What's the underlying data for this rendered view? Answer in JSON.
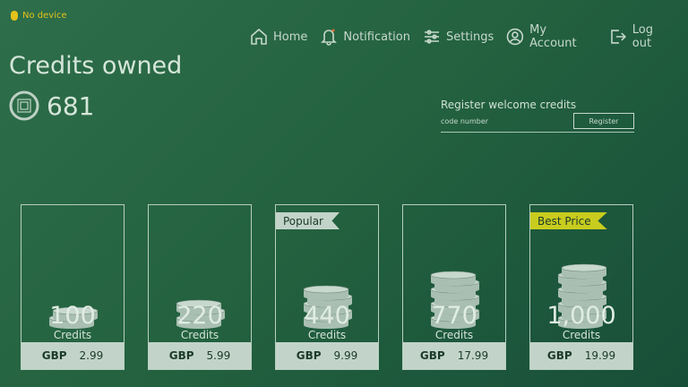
{
  "status": {
    "device": "No device",
    "icon": "bluetooth-icon",
    "color": "#e3c21a"
  },
  "nav": [
    {
      "label": "Home",
      "icon": "home"
    },
    {
      "label": "Notification",
      "icon": "bell"
    },
    {
      "label": "Settings",
      "icon": "sliders"
    },
    {
      "label": "My Account",
      "icon": "user"
    },
    {
      "label": "Log out",
      "icon": "logout"
    }
  ],
  "credits": {
    "title": "Credits owned",
    "balance": "681"
  },
  "register": {
    "label": "Register welcome credits",
    "placeholder": "code number",
    "button": "Register"
  },
  "packs": [
    {
      "amount": "100",
      "unit": "Credits",
      "currency": "GBP",
      "price": "2.99",
      "badge": null,
      "coins": 2
    },
    {
      "amount": "220",
      "unit": "Credits",
      "currency": "GBP",
      "price": "5.99",
      "badge": null,
      "coins": 3
    },
    {
      "amount": "440",
      "unit": "Credits",
      "currency": "GBP",
      "price": "9.99",
      "badge": "Popular",
      "badge_color": "#c2d4c9",
      "coins": 5
    },
    {
      "amount": "770",
      "unit": "Credits",
      "currency": "GBP",
      "price": "17.99",
      "badge": null,
      "coins": 7
    },
    {
      "amount": "1,000",
      "unit": "Credits",
      "currency": "GBP",
      "price": "19.99",
      "badge": "Best Price",
      "badge_color": "#c8cc1e",
      "coins": 8
    }
  ]
}
